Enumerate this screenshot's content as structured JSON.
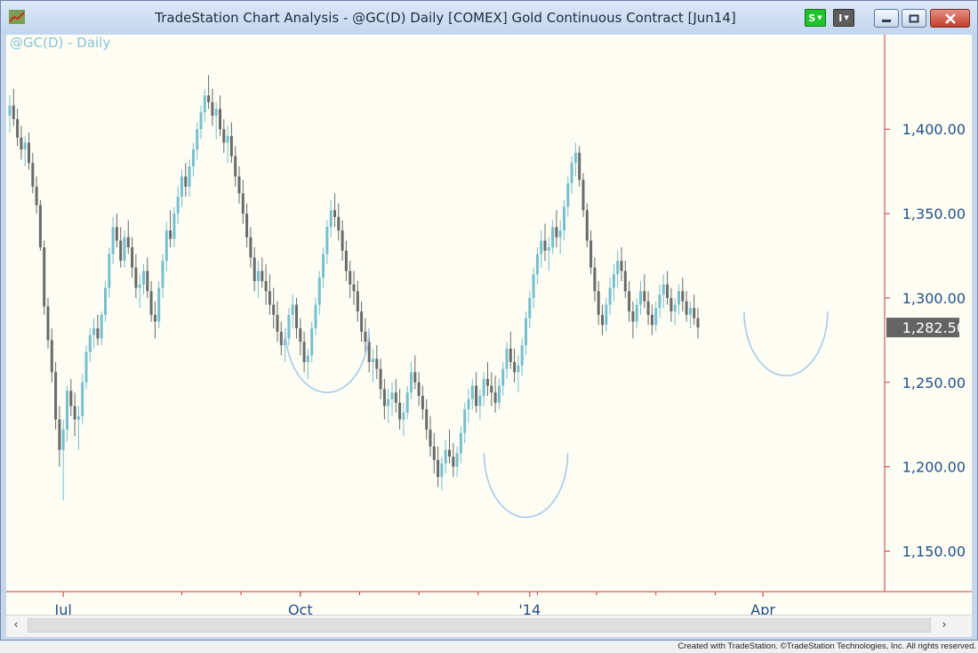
{
  "window": {
    "title": "TradeStation Chart Analysis - @GC(D) Daily [COMEX] Gold Continuous Contract [Jun14]",
    "buttons": {
      "s_label": "S",
      "i_label": "I"
    },
    "icons": {
      "app": "trend-chart-icon",
      "minimize": "minimize-icon",
      "maximize": "maximize-icon",
      "close": "close-icon"
    }
  },
  "chart_header": {
    "symbol_label": "@GC(D) - Daily"
  },
  "scrollbar": {
    "left": "‹",
    "right": "›"
  },
  "footer": {
    "text": "Created with TradeStation. ©TradeStation Technologies, Inc. All rights reserved."
  },
  "colors": {
    "up_bar": "#76bfcf",
    "down_bar": "#6a6a6a",
    "axis_line": "#c23b3b",
    "tick_text": "#24508a",
    "price_box": "#646464",
    "annotation": "#a8cae8"
  },
  "chart_data": {
    "type": "ohlc-candlestick",
    "title": "@GC(D) - Daily",
    "y_ticks": [
      "1,400.00",
      "1,350.00",
      "1,300.00",
      "1,250.00",
      "1,200.00",
      "1,150.00"
    ],
    "y_tick_values": [
      1400,
      1350,
      1300,
      1250,
      1200,
      1150
    ],
    "x_ticks": [
      "Jul",
      "Oct",
      "'14",
      "Apr"
    ],
    "x_tick_bar_index": [
      14,
      76,
      136,
      197
    ],
    "ylim": [
      1126,
      1456
    ],
    "last_price": 1282.5,
    "last_price_label": "1,282.50",
    "grid": false,
    "bars": [
      [
        1408,
        1420,
        1398,
        1414
      ],
      [
        1414,
        1424,
        1402,
        1406
      ],
      [
        1406,
        1412,
        1390,
        1395
      ],
      [
        1395,
        1402,
        1382,
        1388
      ],
      [
        1388,
        1396,
        1378,
        1392
      ],
      [
        1392,
        1398,
        1376,
        1380
      ],
      [
        1380,
        1386,
        1362,
        1366
      ],
      [
        1366,
        1372,
        1350,
        1355
      ],
      [
        1355,
        1358,
        1328,
        1330
      ],
      [
        1330,
        1334,
        1290,
        1295
      ],
      [
        1295,
        1300,
        1270,
        1275
      ],
      [
        1275,
        1282,
        1250,
        1256
      ],
      [
        1256,
        1262,
        1222,
        1228
      ],
      [
        1228,
        1236,
        1200,
        1210
      ],
      [
        1210,
        1228,
        1180,
        1222
      ],
      [
        1222,
        1248,
        1215,
        1245
      ],
      [
        1245,
        1252,
        1230,
        1236
      ],
      [
        1236,
        1244,
        1218,
        1228
      ],
      [
        1228,
        1236,
        1210,
        1230
      ],
      [
        1230,
        1255,
        1225,
        1250
      ],
      [
        1250,
        1272,
        1246,
        1268
      ],
      [
        1268,
        1282,
        1262,
        1278
      ],
      [
        1278,
        1288,
        1270,
        1282
      ],
      [
        1282,
        1290,
        1272,
        1276
      ],
      [
        1276,
        1292,
        1272,
        1290
      ],
      [
        1290,
        1310,
        1286,
        1306
      ],
      [
        1306,
        1330,
        1300,
        1326
      ],
      [
        1326,
        1348,
        1320,
        1342
      ],
      [
        1342,
        1350,
        1330,
        1334
      ],
      [
        1334,
        1342,
        1318,
        1322
      ],
      [
        1322,
        1340,
        1318,
        1336
      ],
      [
        1336,
        1346,
        1326,
        1330
      ],
      [
        1330,
        1336,
        1312,
        1318
      ],
      [
        1318,
        1326,
        1300,
        1306
      ],
      [
        1306,
        1314,
        1294,
        1308
      ],
      [
        1308,
        1320,
        1302,
        1316
      ],
      [
        1316,
        1324,
        1300,
        1304
      ],
      [
        1304,
        1310,
        1286,
        1290
      ],
      [
        1290,
        1298,
        1276,
        1286
      ],
      [
        1286,
        1310,
        1282,
        1306
      ],
      [
        1306,
        1326,
        1300,
        1322
      ],
      [
        1322,
        1345,
        1316,
        1340
      ],
      [
        1340,
        1352,
        1330,
        1335
      ],
      [
        1335,
        1354,
        1330,
        1350
      ],
      [
        1350,
        1366,
        1344,
        1360
      ],
      [
        1360,
        1376,
        1354,
        1372
      ],
      [
        1372,
        1380,
        1360,
        1366
      ],
      [
        1366,
        1382,
        1360,
        1378
      ],
      [
        1378,
        1392,
        1372,
        1388
      ],
      [
        1388,
        1404,
        1382,
        1400
      ],
      [
        1400,
        1414,
        1394,
        1410
      ],
      [
        1410,
        1424,
        1404,
        1420
      ],
      [
        1420,
        1432,
        1412,
        1416
      ],
      [
        1416,
        1424,
        1402,
        1408
      ],
      [
        1408,
        1416,
        1394,
        1412
      ],
      [
        1412,
        1420,
        1396,
        1400
      ],
      [
        1400,
        1406,
        1386,
        1392
      ],
      [
        1392,
        1402,
        1380,
        1396
      ],
      [
        1396,
        1404,
        1380,
        1384
      ],
      [
        1384,
        1390,
        1366,
        1372
      ],
      [
        1372,
        1378,
        1356,
        1362
      ],
      [
        1362,
        1370,
        1344,
        1350
      ],
      [
        1350,
        1356,
        1330,
        1336
      ],
      [
        1336,
        1342,
        1318,
        1324
      ],
      [
        1324,
        1330,
        1304,
        1310
      ],
      [
        1310,
        1322,
        1300,
        1316
      ],
      [
        1316,
        1324,
        1306,
        1310
      ],
      [
        1310,
        1320,
        1296,
        1304
      ],
      [
        1304,
        1314,
        1290,
        1296
      ],
      [
        1296,
        1306,
        1282,
        1290
      ],
      [
        1290,
        1298,
        1274,
        1280
      ],
      [
        1280,
        1286,
        1266,
        1272
      ],
      [
        1272,
        1282,
        1262,
        1276
      ],
      [
        1276,
        1294,
        1272,
        1290
      ],
      [
        1290,
        1302,
        1282,
        1296
      ],
      [
        1296,
        1300,
        1276,
        1282
      ],
      [
        1282,
        1288,
        1266,
        1274
      ],
      [
        1274,
        1280,
        1256,
        1262
      ],
      [
        1262,
        1270,
        1252,
        1266
      ],
      [
        1266,
        1286,
        1262,
        1282
      ],
      [
        1282,
        1300,
        1278,
        1296
      ],
      [
        1296,
        1316,
        1290,
        1312
      ],
      [
        1312,
        1330,
        1306,
        1326
      ],
      [
        1326,
        1346,
        1320,
        1342
      ],
      [
        1342,
        1358,
        1336,
        1352
      ],
      [
        1352,
        1362,
        1342,
        1348
      ],
      [
        1348,
        1356,
        1334,
        1340
      ],
      [
        1340,
        1346,
        1322,
        1328
      ],
      [
        1328,
        1334,
        1310,
        1316
      ],
      [
        1316,
        1322,
        1300,
        1308
      ],
      [
        1308,
        1316,
        1296,
        1304
      ],
      [
        1304,
        1310,
        1286,
        1292
      ],
      [
        1292,
        1298,
        1274,
        1280
      ],
      [
        1280,
        1288,
        1266,
        1274
      ],
      [
        1274,
        1280,
        1256,
        1262
      ],
      [
        1262,
        1270,
        1250,
        1264
      ],
      [
        1264,
        1272,
        1252,
        1258
      ],
      [
        1258,
        1264,
        1240,
        1246
      ],
      [
        1246,
        1252,
        1228,
        1236
      ],
      [
        1236,
        1246,
        1226,
        1240
      ],
      [
        1240,
        1250,
        1230,
        1244
      ],
      [
        1244,
        1252,
        1232,
        1238
      ],
      [
        1238,
        1246,
        1222,
        1228
      ],
      [
        1228,
        1238,
        1218,
        1232
      ],
      [
        1232,
        1248,
        1228,
        1244
      ],
      [
        1244,
        1262,
        1240,
        1256
      ],
      [
        1256,
        1266,
        1246,
        1250
      ],
      [
        1250,
        1256,
        1236,
        1242
      ],
      [
        1242,
        1248,
        1228,
        1234
      ],
      [
        1234,
        1240,
        1216,
        1222
      ],
      [
        1222,
        1230,
        1206,
        1212
      ],
      [
        1212,
        1220,
        1196,
        1204
      ],
      [
        1204,
        1212,
        1188,
        1194
      ],
      [
        1194,
        1206,
        1186,
        1202
      ],
      [
        1202,
        1216,
        1196,
        1210
      ],
      [
        1210,
        1222,
        1202,
        1206
      ],
      [
        1206,
        1214,
        1194,
        1200
      ],
      [
        1200,
        1212,
        1194,
        1208
      ],
      [
        1208,
        1224,
        1202,
        1220
      ],
      [
        1220,
        1238,
        1214,
        1234
      ],
      [
        1234,
        1246,
        1226,
        1240
      ],
      [
        1240,
        1252,
        1234,
        1248
      ],
      [
        1248,
        1256,
        1232,
        1236
      ],
      [
        1236,
        1246,
        1228,
        1242
      ],
      [
        1242,
        1256,
        1236,
        1252
      ],
      [
        1252,
        1262,
        1242,
        1248
      ],
      [
        1248,
        1256,
        1236,
        1244
      ],
      [
        1244,
        1254,
        1232,
        1238
      ],
      [
        1238,
        1252,
        1234,
        1248
      ],
      [
        1248,
        1262,
        1242,
        1258
      ],
      [
        1258,
        1274,
        1252,
        1270
      ],
      [
        1270,
        1280,
        1258,
        1262
      ],
      [
        1262,
        1270,
        1250,
        1256
      ],
      [
        1256,
        1266,
        1244,
        1260
      ],
      [
        1260,
        1276,
        1254,
        1272
      ],
      [
        1272,
        1292,
        1266,
        1288
      ],
      [
        1288,
        1304,
        1282,
        1300
      ],
      [
        1300,
        1318,
        1294,
        1314
      ],
      [
        1314,
        1330,
        1308,
        1326
      ],
      [
        1326,
        1340,
        1318,
        1334
      ],
      [
        1334,
        1344,
        1322,
        1328
      ],
      [
        1328,
        1336,
        1316,
        1330
      ],
      [
        1330,
        1346,
        1326,
        1342
      ],
      [
        1342,
        1352,
        1330,
        1336
      ],
      [
        1336,
        1346,
        1326,
        1340
      ],
      [
        1340,
        1358,
        1334,
        1354
      ],
      [
        1354,
        1372,
        1348,
        1368
      ],
      [
        1368,
        1384,
        1362,
        1380
      ],
      [
        1380,
        1392,
        1372,
        1386
      ],
      [
        1386,
        1390,
        1366,
        1370
      ],
      [
        1370,
        1374,
        1348,
        1352
      ],
      [
        1352,
        1356,
        1330,
        1334
      ],
      [
        1334,
        1340,
        1314,
        1318
      ],
      [
        1318,
        1324,
        1298,
        1304
      ],
      [
        1304,
        1310,
        1284,
        1290
      ],
      [
        1290,
        1296,
        1278,
        1284
      ],
      [
        1284,
        1300,
        1280,
        1296
      ],
      [
        1296,
        1312,
        1290,
        1306
      ],
      [
        1306,
        1320,
        1298,
        1314
      ],
      [
        1314,
        1328,
        1306,
        1322
      ],
      [
        1322,
        1330,
        1310,
        1316
      ],
      [
        1316,
        1322,
        1300,
        1304
      ],
      [
        1304,
        1310,
        1286,
        1292
      ],
      [
        1292,
        1298,
        1276,
        1286
      ],
      [
        1286,
        1300,
        1282,
        1296
      ],
      [
        1296,
        1310,
        1290,
        1304
      ],
      [
        1304,
        1314,
        1294,
        1298
      ],
      [
        1298,
        1304,
        1284,
        1290
      ],
      [
        1290,
        1296,
        1278,
        1284
      ],
      [
        1284,
        1298,
        1280,
        1294
      ],
      [
        1294,
        1308,
        1288,
        1302
      ],
      [
        1302,
        1314,
        1294,
        1308
      ],
      [
        1308,
        1316,
        1296,
        1300
      ],
      [
        1300,
        1306,
        1286,
        1292
      ],
      [
        1292,
        1300,
        1284,
        1296
      ],
      [
        1296,
        1308,
        1290,
        1304
      ],
      [
        1304,
        1312,
        1292,
        1298
      ],
      [
        1298,
        1304,
        1286,
        1290
      ],
      [
        1290,
        1298,
        1282,
        1294
      ],
      [
        1294,
        1302,
        1284,
        1288
      ],
      [
        1288,
        1294,
        1276,
        1282.5
      ]
    ],
    "annotations": [
      {
        "type": "arc",
        "center_bar": 83,
        "bottom_price": 1244
      },
      {
        "type": "arc",
        "center_bar": 135,
        "bottom_price": 1170
      },
      {
        "type": "arc",
        "center_bar": 203,
        "bottom_price": 1254
      }
    ]
  }
}
